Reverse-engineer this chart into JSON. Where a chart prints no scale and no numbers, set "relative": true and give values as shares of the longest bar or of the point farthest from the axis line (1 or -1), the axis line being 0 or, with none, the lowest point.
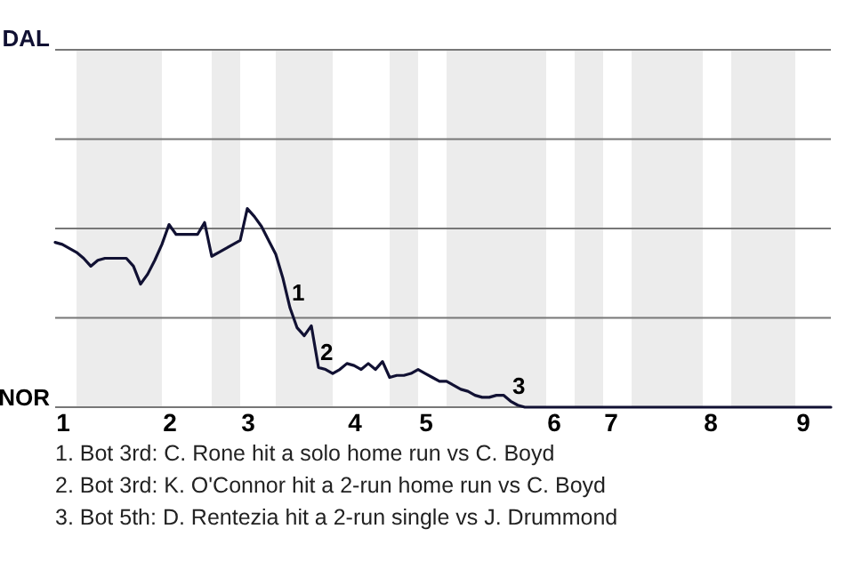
{
  "chart_data": {
    "type": "line",
    "relative": true,
    "categories": [
      null,
      "1",
      null,
      null,
      null,
      null,
      null,
      null,
      null,
      null,
      null,
      null,
      null,
      null,
      null,
      null,
      "2",
      null,
      null,
      null,
      null,
      null,
      null,
      null,
      null,
      null,
      null,
      "3",
      null,
      null,
      null,
      null,
      null,
      null,
      null,
      null,
      null,
      null,
      null,
      null,
      null,
      null,
      "4",
      null,
      null,
      null,
      null,
      null,
      null,
      null,
      null,
      null,
      "5",
      null,
      null,
      null,
      null,
      null,
      null,
      null,
      null,
      null,
      null,
      null,
      null,
      null,
      null,
      null,
      null,
      null,
      "6",
      null,
      null,
      null,
      null,
      null,
      null,
      null,
      "7",
      null,
      null,
      null,
      null,
      null,
      null,
      null,
      null,
      null,
      null,
      null,
      null,
      null,
      "8",
      null,
      null,
      null,
      null,
      null,
      null,
      null,
      null,
      null,
      null,
      null,
      null,
      "9",
      null,
      null,
      null,
      null
    ],
    "marker": "none",
    "line_style": "solid",
    "ref_lines": [
      {
        "axis": "y",
        "value": 0.45,
        "color": "#777777"
      },
      {
        "axis": "y",
        "value": 0.9,
        "color": "#777777"
      },
      {
        "axis": "y",
        "value": 1.35,
        "color": "#777777"
      },
      {
        "axis": "y",
        "value": 1.8,
        "color": "#777777"
      }
    ],
    "series": [
      {
        "color": "#111133",
        "values": [
          0.83,
          0.82,
          0.8,
          0.78,
          0.75,
          0.71,
          0.74,
          0.75,
          0.75,
          0.75,
          0.75,
          0.71,
          0.62,
          0.67,
          0.74,
          0.82,
          0.92,
          0.87,
          0.87,
          0.87,
          0.87,
          0.93,
          0.76,
          0.78,
          0.8,
          0.82,
          0.84,
          1,
          0.96,
          0.91,
          0.84,
          0.77,
          0.65,
          0.5,
          0.4,
          0.36,
          0.41,
          0.2,
          0.19,
          0.17,
          0.19,
          0.22,
          0.21,
          0.19,
          0.22,
          0.19,
          0.23,
          0.15,
          0.16,
          0.16,
          0.17,
          0.19,
          0.17,
          0.15,
          0.13,
          0.13,
          0.11,
          0.09,
          0.08,
          0.06,
          0.05,
          0.05,
          0.06,
          0.06,
          0.03,
          0.01,
          0,
          0,
          0,
          0,
          0,
          0,
          0,
          0,
          0,
          0,
          0,
          0,
          0,
          0,
          0,
          0,
          0,
          0,
          0,
          0,
          0,
          0,
          0,
          0,
          0,
          0,
          0,
          0,
          0,
          0,
          0,
          0,
          0,
          0,
          0,
          0,
          0,
          0,
          0,
          0,
          0,
          0,
          0,
          0
        ]
      }
    ],
    "annotations": [
      "DAL",
      "NOR",
      {
        "text": "1",
        "y": 0.5
      },
      {
        "text": "2",
        "y": 0.2
      },
      {
        "text": "3",
        "y": 0.03
      },
      "1. Bot 3rd: C. Rone hit a solo home run vs C. Boyd",
      "2. Bot 3rd: K. O'Connor hit a 2-run home run vs C. Boyd",
      "3. Bot 5th: D. Rentezia hit a 2-run single vs J. Drummond"
    ]
  }
}
